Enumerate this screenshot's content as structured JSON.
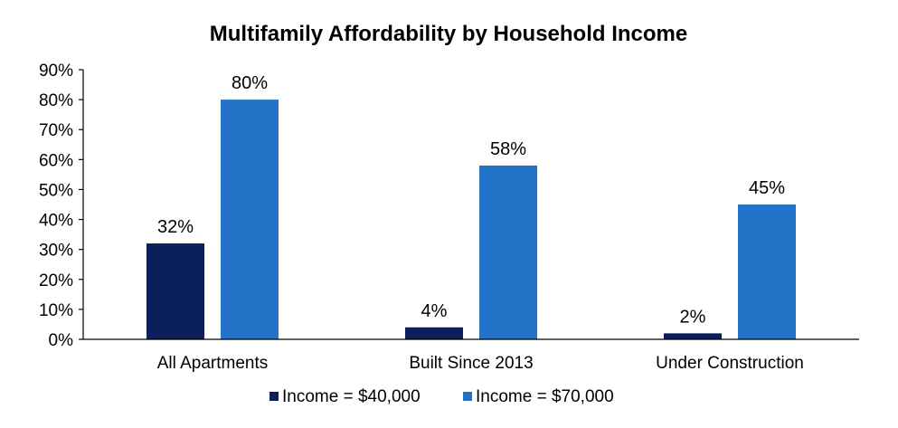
{
  "chart_data": {
    "type": "bar",
    "title": "Multifamily Affordability by Household Income",
    "xlabel": "",
    "ylabel": "",
    "categories": [
      "All Apartments",
      "Built Since 2013",
      "Under Construction"
    ],
    "series": [
      {
        "name": "Income = $40,000",
        "values": [
          32,
          4,
          2
        ],
        "labels": [
          "32%",
          "4%",
          "2%"
        ],
        "color": "#0a1f5c"
      },
      {
        "name": "Income = $70,000",
        "values": [
          80,
          58,
          45
        ],
        "labels": [
          "80%",
          "58%",
          "45%"
        ],
        "color": "#2272c8"
      }
    ],
    "ylim": [
      0,
      90
    ],
    "yticks": [
      0,
      10,
      20,
      30,
      40,
      50,
      60,
      70,
      80,
      90
    ],
    "ytick_labels": [
      "0%",
      "10%",
      "20%",
      "30%",
      "40%",
      "50%",
      "60%",
      "70%",
      "80%",
      "90%"
    ],
    "grid": false,
    "legend_position": "bottom"
  }
}
